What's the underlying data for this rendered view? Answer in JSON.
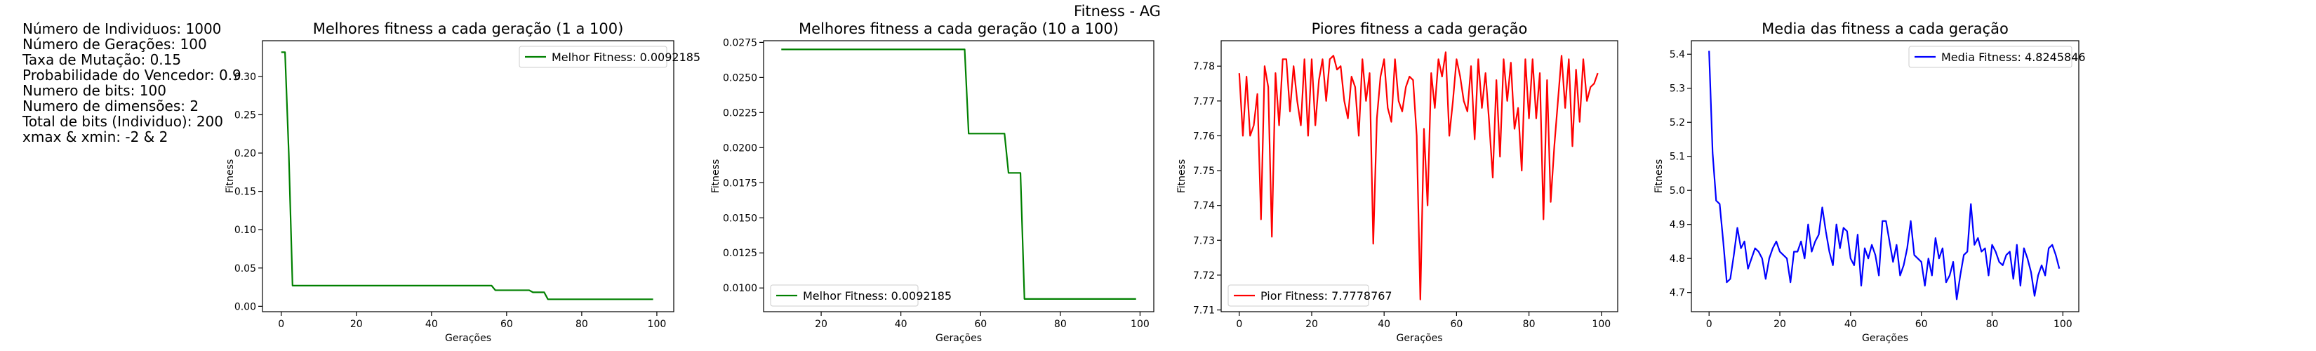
{
  "figure_title": "Fitness - AG",
  "params": [
    "Número de Individuos: 1000",
    "Número de Gerações: 100",
    "Taxa de Mutação: 0.15",
    "Probabilidade do Vencedor: 0.9",
    "Numero de bits: 100",
    "Numero de dimensões: 2",
    "Total de bits (Individuo): 200",
    "xmax & xmin: -2 & 2"
  ],
  "colors": {
    "best": "#008000",
    "worst": "#ff0000",
    "mean": "#0000ff"
  },
  "chart_data": [
    {
      "type": "line",
      "title": "Melhores fitness a cada geração (1 a 100)",
      "xlabel": "Gerações",
      "ylabel": "Fitness",
      "xlim": [
        -5,
        104.5
      ],
      "ylim": [
        -0.007,
        0.3466
      ],
      "xticks": [
        0,
        20,
        40,
        60,
        80,
        100
      ],
      "xtick_labels": [
        "0",
        "20",
        "40",
        "60",
        "80",
        "100"
      ],
      "yticks": [
        0.0,
        0.05,
        0.1,
        0.15,
        0.2,
        0.25,
        0.3
      ],
      "ytick_labels": [
        "0.00",
        "0.05",
        "0.10",
        "0.15",
        "0.20",
        "0.25",
        "0.30"
      ],
      "grid": false,
      "legend_position": "top-right",
      "series": [
        {
          "name": "Melhor Fitness: 0.0092185",
          "color": "#008000",
          "x": [
            0,
            1,
            2,
            3,
            56,
            57,
            66,
            67,
            70,
            71,
            99
          ],
          "y": [
            0.3316,
            0.3316,
            0.2,
            0.027,
            0.027,
            0.021,
            0.021,
            0.0183,
            0.0183,
            0.0092185,
            0.0092185
          ]
        }
      ]
    },
    {
      "type": "line",
      "title": "Melhores fitness a cada geração (10 a 100)",
      "xlabel": "Gerações",
      "ylabel": "Fitness",
      "xlim": [
        5.55,
        103.45
      ],
      "ylim": [
        0.00831,
        0.02762
      ],
      "xticks": [
        20,
        40,
        60,
        80,
        100
      ],
      "xtick_labels": [
        "20",
        "40",
        "60",
        "80",
        "100"
      ],
      "yticks": [
        0.01,
        0.0125,
        0.015,
        0.0175,
        0.02,
        0.0225,
        0.025,
        0.0275
      ],
      "ytick_labels": [
        "0.0100",
        "0.0125",
        "0.0150",
        "0.0175",
        "0.0200",
        "0.0225",
        "0.0250",
        "0.0275"
      ],
      "grid": false,
      "legend_position": "bottom-left",
      "series": [
        {
          "name": "Melhor Fitness: 0.0092185",
          "color": "#008000",
          "x": [
            10,
            56,
            57,
            66,
            67,
            70,
            71,
            99
          ],
          "y": [
            0.027,
            0.027,
            0.021,
            0.021,
            0.0182,
            0.0182,
            0.0092185,
            0.0092185
          ]
        }
      ]
    },
    {
      "type": "line",
      "title": "Piores fitness a cada geração",
      "xlabel": "Gerações",
      "ylabel": "Fitness",
      "xlim": [
        -5,
        104.5
      ],
      "ylim": [
        7.7095,
        7.7873
      ],
      "xticks": [
        0,
        20,
        40,
        60,
        80,
        100
      ],
      "xtick_labels": [
        "0",
        "20",
        "40",
        "60",
        "80",
        "100"
      ],
      "yticks": [
        7.71,
        7.72,
        7.73,
        7.74,
        7.75,
        7.76,
        7.77,
        7.78
      ],
      "ytick_labels": [
        "7.71",
        "7.72",
        "7.73",
        "7.74",
        "7.75",
        "7.76",
        "7.77",
        "7.78"
      ],
      "grid": false,
      "legend_position": "bottom-left",
      "series": [
        {
          "name": "Pior Fitness: 7.7778767",
          "color": "#ff0000",
          "x": [
            0,
            1,
            2,
            3,
            4,
            5,
            6,
            7,
            8,
            9,
            10,
            11,
            12,
            13,
            14,
            15,
            16,
            17,
            18,
            19,
            20,
            21,
            22,
            23,
            24,
            25,
            26,
            27,
            28,
            29,
            30,
            31,
            32,
            33,
            34,
            35,
            36,
            37,
            38,
            39,
            40,
            41,
            42,
            43,
            44,
            45,
            46,
            47,
            48,
            49,
            50,
            51,
            52,
            53,
            54,
            55,
            56,
            57,
            58,
            59,
            60,
            61,
            62,
            63,
            64,
            65,
            66,
            67,
            68,
            69,
            70,
            71,
            72,
            73,
            74,
            75,
            76,
            77,
            78,
            79,
            80,
            81,
            82,
            83,
            84,
            85,
            86,
            87,
            88,
            89,
            90,
            91,
            92,
            93,
            94,
            95,
            96,
            97,
            98,
            99
          ],
          "y": [
            7.778,
            7.76,
            7.777,
            7.76,
            7.763,
            7.772,
            7.736,
            7.78,
            7.774,
            7.731,
            7.778,
            7.763,
            7.782,
            7.782,
            7.767,
            7.78,
            7.77,
            7.763,
            7.782,
            7.76,
            7.782,
            7.763,
            7.776,
            7.782,
            7.77,
            7.782,
            7.783,
            7.779,
            7.78,
            7.77,
            7.765,
            7.777,
            7.774,
            7.76,
            7.782,
            7.77,
            7.778,
            7.729,
            7.765,
            7.777,
            7.782,
            7.768,
            7.764,
            7.782,
            7.77,
            7.767,
            7.774,
            7.777,
            7.776,
            7.76,
            7.713,
            7.762,
            7.74,
            7.778,
            7.768,
            7.782,
            7.777,
            7.784,
            7.76,
            7.77,
            7.782,
            7.777,
            7.77,
            7.767,
            7.78,
            7.759,
            7.782,
            7.768,
            7.778,
            7.764,
            7.748,
            7.776,
            7.754,
            7.782,
            7.77,
            7.781,
            7.762,
            7.768,
            7.75,
            7.782,
            7.765,
            7.782,
            7.765,
            7.778,
            7.736,
            7.776,
            7.741,
            7.757,
            7.77,
            7.783,
            7.768,
            7.782,
            7.757,
            7.779,
            7.764,
            7.782,
            7.77,
            7.774,
            7.775,
            7.778
          ]
        }
      ]
    },
    {
      "type": "line",
      "title": "Media das fitness a cada geração",
      "xlabel": "Gerações",
      "ylabel": "Fitness",
      "xlim": [
        -5,
        104.5
      ],
      "ylim": [
        4.6436,
        5.4397
      ],
      "xticks": [
        0,
        20,
        40,
        60,
        80,
        100
      ],
      "xtick_labels": [
        "0",
        "20",
        "40",
        "60",
        "80",
        "100"
      ],
      "yticks": [
        4.7,
        4.8,
        4.9,
        5.0,
        5.1,
        5.2,
        5.3,
        5.4
      ],
      "ytick_labels": [
        "4.7",
        "4.8",
        "4.9",
        "5.0",
        "5.1",
        "5.2",
        "5.3",
        "5.4"
      ],
      "grid": false,
      "legend_position": "top-right",
      "series": [
        {
          "name": "Media Fitness: 4.8245846",
          "color": "#0000ff",
          "x": [
            0,
            1,
            2,
            3,
            4,
            5,
            6,
            7,
            8,
            9,
            10,
            11,
            12,
            13,
            14,
            15,
            16,
            17,
            18,
            19,
            20,
            21,
            22,
            23,
            24,
            25,
            26,
            27,
            28,
            29,
            30,
            31,
            32,
            33,
            34,
            35,
            36,
            37,
            38,
            39,
            40,
            41,
            42,
            43,
            44,
            45,
            46,
            47,
            48,
            49,
            50,
            51,
            52,
            53,
            54,
            55,
            56,
            57,
            58,
            59,
            60,
            61,
            62,
            63,
            64,
            65,
            66,
            67,
            68,
            69,
            70,
            71,
            72,
            73,
            74,
            75,
            76,
            77,
            78,
            79,
            80,
            81,
            82,
            83,
            84,
            85,
            86,
            87,
            88,
            89,
            90,
            91,
            92,
            93,
            94,
            95,
            96,
            97,
            98,
            99
          ],
          "y": [
            5.41,
            5.11,
            4.97,
            4.96,
            4.85,
            4.73,
            4.74,
            4.81,
            4.89,
            4.83,
            4.85,
            4.77,
            4.8,
            4.83,
            4.82,
            4.8,
            4.74,
            4.8,
            4.83,
            4.85,
            4.82,
            4.81,
            4.8,
            4.73,
            4.82,
            4.82,
            4.85,
            4.8,
            4.9,
            4.82,
            4.85,
            4.87,
            4.95,
            4.88,
            4.82,
            4.78,
            4.9,
            4.83,
            4.89,
            4.88,
            4.8,
            4.78,
            4.87,
            4.72,
            4.83,
            4.8,
            4.84,
            4.81,
            4.75,
            4.91,
            4.91,
            4.85,
            4.79,
            4.84,
            4.75,
            4.78,
            4.83,
            4.91,
            4.81,
            4.8,
            4.79,
            4.72,
            4.8,
            4.75,
            4.86,
            4.8,
            4.83,
            4.73,
            4.75,
            4.79,
            4.68,
            4.75,
            4.81,
            4.82,
            4.96,
            4.84,
            4.86,
            4.82,
            4.83,
            4.75,
            4.84,
            4.82,
            4.79,
            4.78,
            4.81,
            4.82,
            4.74,
            4.84,
            4.72,
            4.83,
            4.8,
            4.76,
            4.69,
            4.75,
            4.78,
            4.75,
            4.83,
            4.84,
            4.81,
            4.77
          ]
        }
      ]
    }
  ]
}
